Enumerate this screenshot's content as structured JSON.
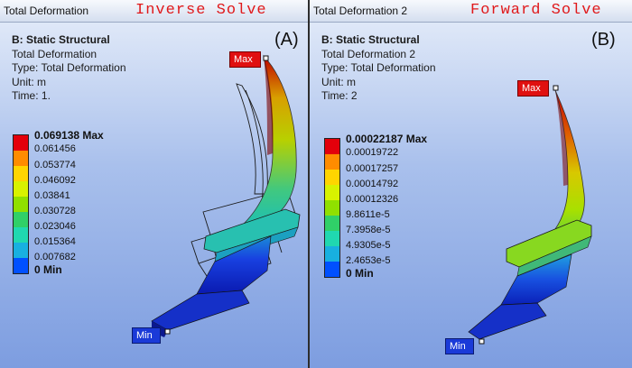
{
  "panel_a": {
    "view_title": "Total Deformation",
    "solve_label": "Inverse Solve",
    "panel_letter": "(A)",
    "info": {
      "header": "B: Static Structural",
      "name": "Total Deformation",
      "type": "Type: Total Deformation",
      "unit": "Unit: m",
      "time": "Time: 1."
    },
    "legend": [
      "0.069138 Max",
      "0.061456",
      "0.053774",
      "0.046092",
      "0.03841",
      "0.030728",
      "0.023046",
      "0.015364",
      "0.007682",
      "0 Min"
    ],
    "max_tag": "Max",
    "min_tag": "Min"
  },
  "panel_b": {
    "view_title": "Total Deformation 2",
    "solve_label": "Forward Solve",
    "panel_letter": "(B)",
    "info": {
      "header": "B: Static Structural",
      "name": "Total Deformation 2",
      "type": "Type: Total Deformation",
      "unit": "Unit: m",
      "time": "Time: 2"
    },
    "legend": [
      "0.00022187 Max",
      "0.00019722",
      "0.00017257",
      "0.00014792",
      "0.00012326",
      "9.8611e-5",
      "7.3958e-5",
      "4.9305e-5",
      "2.4653e-5",
      "0 Min"
    ],
    "max_tag": "Max",
    "min_tag": "Min"
  },
  "colors": {
    "legend_scale": [
      "#e3000b",
      "#ff8c00",
      "#ffd500",
      "#d8f200",
      "#90e000",
      "#30d068",
      "#20d8b0",
      "#18b0e0",
      "#0050ff"
    ]
  }
}
